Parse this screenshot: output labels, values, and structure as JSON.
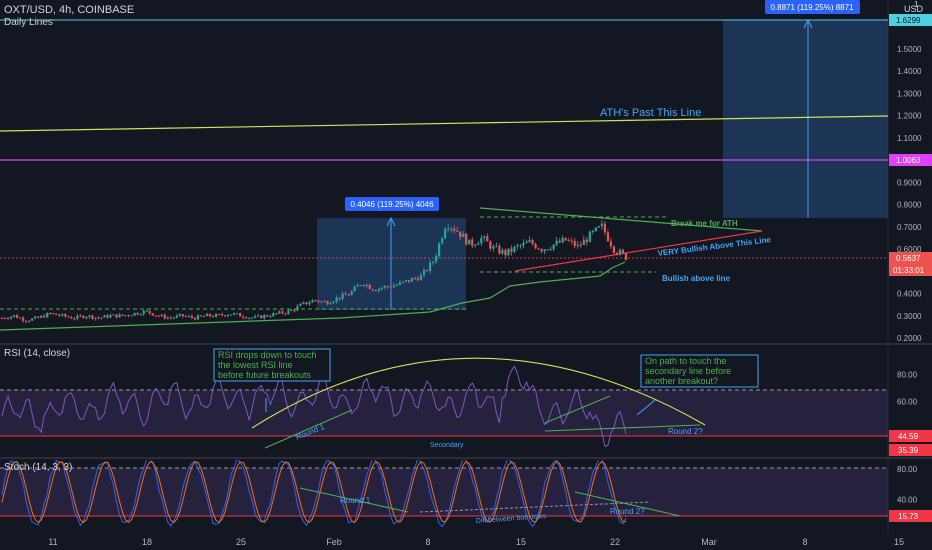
{
  "header": {
    "symbol": "OXT/USD, 4h, COINBASE",
    "study": "Daily Lines"
  },
  "price_scale": {
    "currency": "USD",
    "top_tick": "1",
    "ticks": [
      "1.5000",
      "1.4000",
      "1.3000",
      "1.2000",
      "1.1000",
      "1.0000",
      "0.9000",
      "0.8000",
      "0.7000",
      "0.6000",
      "0.5000",
      "0.4000",
      "0.3000",
      "0.2000"
    ],
    "tick_values": [
      1.5,
      1.4,
      1.3,
      1.2,
      1.1,
      1.0,
      0.9,
      0.8,
      0.7,
      0.6,
      0.5,
      0.4,
      0.3,
      0.2
    ],
    "labels": {
      "ath": "1.6299",
      "magenta": "1.0063",
      "last_price": "0.5637",
      "countdown": "01:33:01"
    }
  },
  "rsi_pane": {
    "title": "RSI (14, close)",
    "ticks": [
      "80.00",
      "60.00"
    ],
    "tick_values": [
      80,
      60
    ],
    "labels": {
      "current": "44.59",
      "secondary": "35.39"
    }
  },
  "stoch_pane": {
    "title": "Stoch (14, 3, 3)",
    "ticks": [
      "80.00",
      "40.00"
    ],
    "tick_values": [
      80,
      40
    ],
    "labels": {
      "current": "15.73"
    }
  },
  "time_axis": [
    "11",
    "18",
    "25",
    "Feb",
    "8",
    "15",
    "22",
    "Mar",
    "8",
    "15"
  ],
  "annotations": {
    "measure_top": "0.8871 (119.25%) 8871",
    "measure_mid": "0.4046 (119.25%) 4046",
    "ath_line": "ATH's Past This Line",
    "break_me": "Break me for ATH",
    "very_bullish": "VERY Bullish Above This Line",
    "bullish_above": "Bullish above line",
    "rsi_box": "RSI drops down to touch the lowest RSI line before future breakouts",
    "path_box": "On path to touch the secondary line before another breakout?",
    "rsi_round1": "Round 1",
    "rsi_round2": "Round 2?",
    "rsi_secondary": "Secondary",
    "stoch_round1": "Round 1",
    "stoch_round2": "Round 2?",
    "stoch_diff": "Diff between both lows"
  },
  "colors": {
    "background": "#131722",
    "candle_up": "#26a69a",
    "candle_down": "#ef5350",
    "ath_line": "#4dd0e1",
    "magenta": "#e040fb",
    "yellow_line": "#d4e157",
    "green_trend": "#4caf50",
    "red_trend": "#f23645",
    "measure_box": "#1e3a5f",
    "rsi_line": "#7e57c2",
    "stoch_k": "#2962ff",
    "stoch_d": "#ff6d00"
  },
  "chart_data": {
    "type": "candlestick",
    "x_range": [
      "Jan 7",
      "Mar 17"
    ],
    "ylim": [
      0.2,
      1.65
    ],
    "price_series": [
      0.29,
      0.3,
      0.28,
      0.29,
      0.31,
      0.3,
      0.29,
      0.3,
      0.29,
      0.3,
      0.3,
      0.31,
      0.32,
      0.3,
      0.29,
      0.3,
      0.29,
      0.3,
      0.3,
      0.31,
      0.3,
      0.29,
      0.3,
      0.31,
      0.32,
      0.35,
      0.37,
      0.36,
      0.38,
      0.4,
      0.45,
      0.42,
      0.43,
      0.44,
      0.46,
      0.48,
      0.55,
      0.72,
      0.68,
      0.62,
      0.65,
      0.6,
      0.58,
      0.61,
      0.63,
      0.6,
      0.62,
      0.64,
      0.61,
      0.66,
      0.7,
      0.6,
      0.5637
    ],
    "rsi": {
      "ylim": [
        20,
        95
      ],
      "current": 44.59
    },
    "stoch": {
      "ylim": [
        0,
        100
      ],
      "current": 15.73
    }
  }
}
